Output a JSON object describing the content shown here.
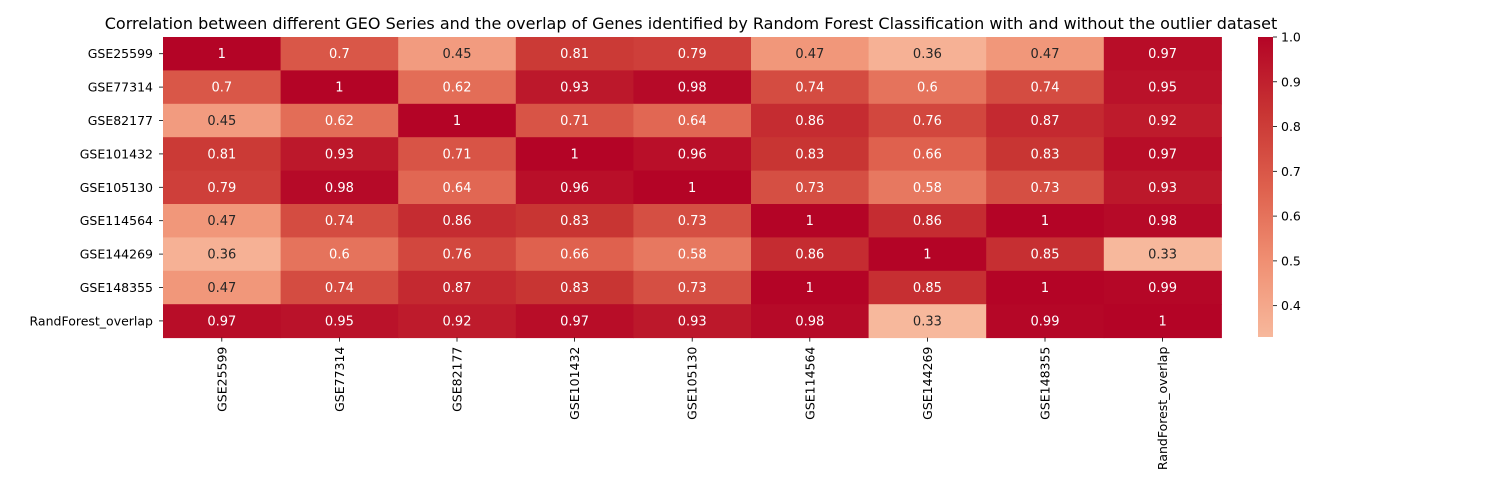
{
  "chart_data": {
    "type": "heatmap",
    "title": "Correlation between different GEO Series and the overlap of Genes identified by Random Forest Classification with and without the outlier dataset",
    "rows": [
      "GSE25599",
      "GSE77314",
      "GSE82177",
      "GSE101432",
      "GSE105130",
      "GSE114564",
      "GSE144269",
      "GSE148355",
      "RandForest_overlap"
    ],
    "columns": [
      "GSE25599",
      "GSE77314",
      "GSE82177",
      "GSE101432",
      "GSE105130",
      "GSE114564",
      "GSE144269",
      "GSE148355",
      "RandForest_overlap"
    ],
    "values": [
      [
        1,
        0.7,
        0.45,
        0.81,
        0.79,
        0.47,
        0.36,
        0.47,
        0.97
      ],
      [
        0.7,
        1,
        0.62,
        0.93,
        0.98,
        0.74,
        0.6,
        0.74,
        0.95
      ],
      [
        0.45,
        0.62,
        1,
        0.71,
        0.64,
        0.86,
        0.76,
        0.87,
        0.92
      ],
      [
        0.81,
        0.93,
        0.71,
        1,
        0.96,
        0.83,
        0.66,
        0.83,
        0.97
      ],
      [
        0.79,
        0.98,
        0.64,
        0.96,
        1,
        0.73,
        0.58,
        0.73,
        0.93
      ],
      [
        0.47,
        0.74,
        0.86,
        0.83,
        0.73,
        1,
        0.86,
        1,
        0.98
      ],
      [
        0.36,
        0.6,
        0.76,
        0.66,
        0.58,
        0.86,
        1,
        0.85,
        0.33
      ],
      [
        0.47,
        0.74,
        0.87,
        0.83,
        0.73,
        1,
        0.85,
        1,
        0.99
      ],
      [
        0.97,
        0.95,
        0.92,
        0.97,
        0.93,
        0.98,
        0.33,
        0.99,
        1
      ]
    ],
    "colorbar": {
      "min": 0.33,
      "max": 1.0,
      "ticks": [
        "0.4",
        "0.5",
        "0.6",
        "0.7",
        "0.8",
        "0.9",
        "1.0"
      ],
      "colormap": "coolwarm (upper half)",
      "low_color": "#f7b89c",
      "high_color": "#b40426"
    },
    "annotations": "cell values shown"
  }
}
